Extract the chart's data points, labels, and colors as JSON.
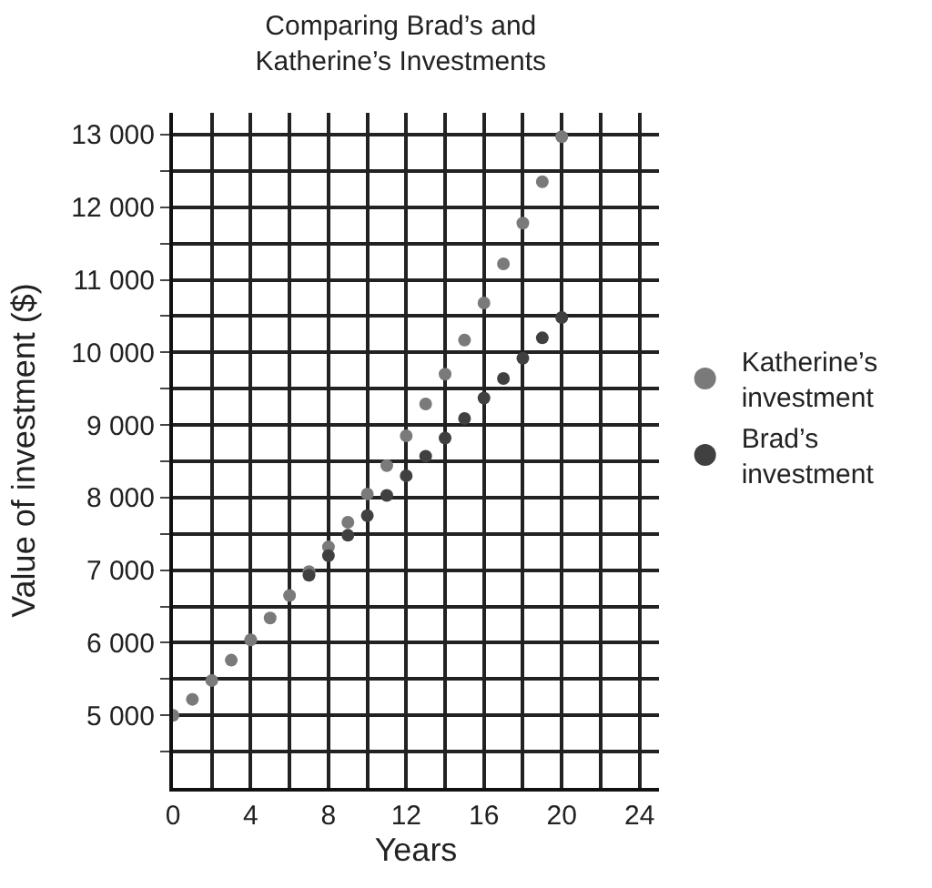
{
  "chart_data": {
    "type": "scatter",
    "title": "Comparing Brad’s and\nKatherine’s Investments",
    "xlabel": "Years",
    "ylabel": "Value of investment ($)",
    "x": [
      0,
      1,
      2,
      3,
      4,
      5,
      6,
      7,
      8,
      9,
      10,
      11,
      12,
      13,
      14,
      15,
      16,
      17,
      18,
      19,
      20
    ],
    "series": [
      {
        "name": "Katherine’s investment",
        "color": "#7a7a7a",
        "values": [
          5000,
          5220,
          5480,
          5760,
          6040,
          6340,
          6650,
          6980,
          7320,
          7660,
          8050,
          8440,
          8850,
          9290,
          9700,
          10170,
          10680,
          11220,
          11780,
          12350,
          12970
        ]
      },
      {
        "name": "Brad’s investment",
        "color": "#404040",
        "values": [
          null,
          null,
          null,
          null,
          null,
          null,
          null,
          6930,
          7200,
          7480,
          7750,
          8030,
          8300,
          8570,
          8820,
          9090,
          9370,
          9640,
          9920,
          10200,
          10480
        ]
      }
    ],
    "xlim": [
      0,
      25
    ],
    "ylim": [
      4000,
      13300
    ],
    "xticks": [
      0,
      {
        "value": 2,
        "label": null
      },
      4,
      {
        "value": 6,
        "label": null
      },
      8,
      {
        "value": 10,
        "label": null
      },
      12,
      {
        "value": 14,
        "label": null
      },
      16,
      {
        "value": 18,
        "label": null
      },
      20,
      {
        "value": 22,
        "label": null
      },
      24
    ],
    "yticks": [
      {
        "value": 4500,
        "label": null
      },
      {
        "value": 5000,
        "label": "5 000"
      },
      {
        "value": 5500,
        "label": null
      },
      {
        "value": 6000,
        "label": "6 000"
      },
      {
        "value": 6500,
        "label": null
      },
      {
        "value": 7000,
        "label": "7 000"
      },
      {
        "value": 7500,
        "label": null
      },
      {
        "value": 8000,
        "label": "8 000"
      },
      {
        "value": 8500,
        "label": null
      },
      {
        "value": 9000,
        "label": "9 000"
      },
      {
        "value": 9500,
        "label": null
      },
      {
        "value": 10000,
        "label": "10 000"
      },
      {
        "value": 10500,
        "label": null
      },
      {
        "value": 11000,
        "label": "11 000"
      },
      {
        "value": 11500,
        "label": null
      },
      {
        "value": 12000,
        "label": "12 000"
      },
      {
        "value": 12500,
        "label": null
      },
      {
        "value": 13000,
        "label": "13 000"
      }
    ],
    "grid": true,
    "legend": "right",
    "marker": "circle"
  }
}
